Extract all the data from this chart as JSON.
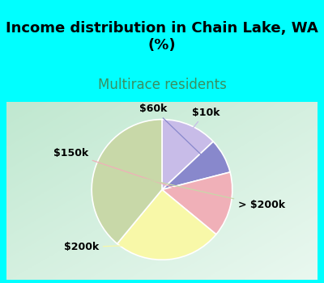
{
  "title": "Income distribution in Chain Lake, WA\n(%)",
  "subtitle": "Multirace residents",
  "labels": [
    "$10k",
    "$60k",
    "$150k",
    "$200k",
    "> $200k"
  ],
  "sizes": [
    13,
    8,
    15,
    25,
    39
  ],
  "colors": [
    "#c8bce8",
    "#8888cc",
    "#f0b0b8",
    "#f8f8a8",
    "#c8d8a8"
  ],
  "background_color": "#00ffff",
  "chart_bg_top_left": "#c8e8d8",
  "chart_bg_bottom_right": "#e8f8f0",
  "title_fontsize": 13,
  "subtitle_fontsize": 12,
  "subtitle_color": "#3a9060",
  "startangle": 90,
  "label_fontsize": 9
}
